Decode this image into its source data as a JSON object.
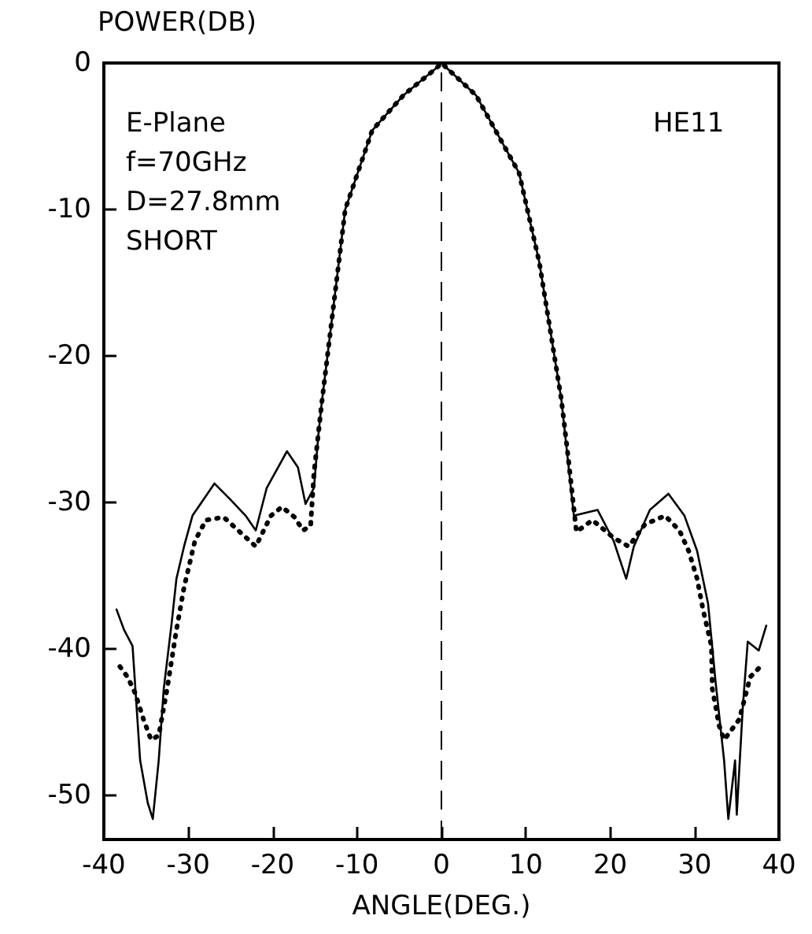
{
  "chart_data": {
    "type": "line",
    "ylabel": "POWER(DB)",
    "xlabel": "ANGLE(DEG.)",
    "annotations": [
      "E-Plane",
      "f=70GHz",
      "D=27.8mm",
      "SHORT",
      "HE11"
    ],
    "xlim": [
      -40,
      40
    ],
    "xticks": [
      -40,
      -30,
      -20,
      -10,
      0,
      10,
      20,
      30,
      40
    ],
    "ylim": [
      -53,
      0
    ],
    "yticks": [
      -50,
      -40,
      -30,
      -20,
      -10,
      0
    ],
    "grid": false,
    "marker": "none",
    "ref_lines": [
      {
        "axis": "x",
        "value": 0,
        "line_style": "dashed",
        "color": "#000000"
      }
    ],
    "series": [
      {
        "color": "#000000",
        "line_style": "solid",
        "x": [
          -38.5,
          -37.6,
          -36.6,
          -35.7,
          -34.8,
          -34.2,
          -33.5,
          -32.9,
          -32,
          -31.4,
          -30.5,
          -29.5,
          -26.9,
          -25,
          -23.2,
          -22,
          -20.7,
          -18.3,
          -17,
          -16.1,
          -15.1,
          -14.6,
          -14.2,
          -11.4,
          -8.2,
          -4.5,
          -0.5,
          0,
          4.1,
          9.2,
          11.6,
          14.2,
          14.8,
          15.7,
          18.5,
          20.4,
          21.9,
          22.8,
          24.7,
          26.9,
          28.8,
          30.3,
          31.6,
          32.5,
          33.5,
          34,
          34.8,
          35,
          35.7,
          36.3,
          37.6,
          38.5
        ],
        "values": [
          -37.3,
          -38.7,
          -39.8,
          -47.6,
          -50.5,
          -51.6,
          -47.6,
          -42.7,
          -38.4,
          -35.2,
          -33,
          -30.9,
          -28.7,
          -29.8,
          -30.9,
          -31.9,
          -29,
          -26.5,
          -27.6,
          -30.1,
          -29,
          -25.5,
          -23.3,
          -10,
          -4.6,
          -2.2,
          -0.3,
          0,
          -2.2,
          -7.5,
          -13.6,
          -22.9,
          -26.1,
          -30.9,
          -30.5,
          -32.6,
          -35.2,
          -33,
          -30.5,
          -29.4,
          -30.9,
          -33.3,
          -36.9,
          -42.3,
          -47.6,
          -51.6,
          -47.6,
          -51.3,
          -44.1,
          -39.5,
          -40.1,
          -38.4
        ]
      },
      {
        "color": "#000000",
        "line_style": "dotted",
        "x": [
          -38.1,
          -37.2,
          -36.3,
          -35.3,
          -34.4,
          -33.5,
          -32.5,
          -31.4,
          -30.5,
          -29.2,
          -27.9,
          -25.8,
          -23.9,
          -22,
          -20.2,
          -18.9,
          -17.4,
          -16.4,
          -15.5,
          -15.1,
          -14.2,
          -11.4,
          -8.2,
          -4.5,
          -0.5,
          0,
          4.1,
          9.2,
          11.6,
          14.2,
          15,
          16,
          17.9,
          20.4,
          22.2,
          24.1,
          26.5,
          28.2,
          29.3,
          30.3,
          31,
          32,
          32.1,
          32.9,
          33.5,
          35.3,
          36.6,
          37.8
        ],
        "values": [
          -41.2,
          -41.9,
          -43,
          -44.8,
          -46.2,
          -45.9,
          -42.7,
          -38.7,
          -35.8,
          -32.6,
          -31.2,
          -31,
          -32,
          -33,
          -30.9,
          -30.3,
          -31,
          -31.9,
          -31.6,
          -28,
          -23.3,
          -10,
          -4.6,
          -2.2,
          -0.3,
          0,
          -2.2,
          -7.5,
          -13.6,
          -22.9,
          -26.8,
          -32,
          -31.2,
          -32.4,
          -33,
          -31.5,
          -30.9,
          -31.9,
          -33.3,
          -35.2,
          -37.3,
          -39.8,
          -42.7,
          -45.2,
          -46.2,
          -44.8,
          -41.9,
          -41.2
        ]
      }
    ]
  }
}
